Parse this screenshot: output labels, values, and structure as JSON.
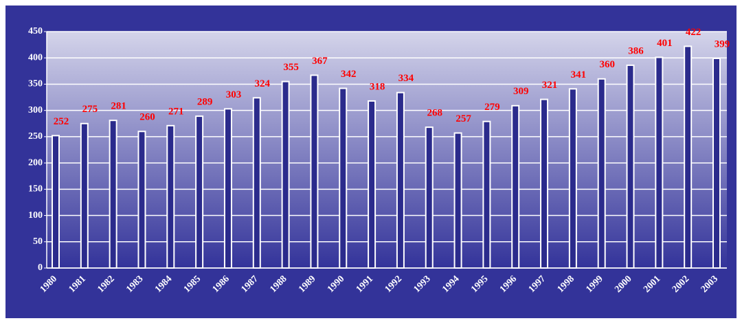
{
  "chart_data": {
    "type": "bar",
    "categories": [
      "1980",
      "1981",
      "1982",
      "1983",
      "1984",
      "1985",
      "1986",
      "1987",
      "1988",
      "1989",
      "1990",
      "1991",
      "1992",
      "1993",
      "1994",
      "1995",
      "1996",
      "1997",
      "1998",
      "1999",
      "2000",
      "2001",
      "2002",
      "2003"
    ],
    "values": [
      252,
      275,
      281,
      260,
      271,
      289,
      303,
      324,
      355,
      367,
      342,
      318,
      334,
      268,
      257,
      279,
      309,
      321,
      341,
      360,
      386,
      401,
      422,
      399
    ],
    "color": "#2b2b8c",
    "label_color": "#ff0000",
    "ylim": [
      0,
      450
    ],
    "yticks": [
      0,
      50,
      100,
      150,
      200,
      250,
      300,
      350,
      400,
      450
    ],
    "grid": true
  }
}
